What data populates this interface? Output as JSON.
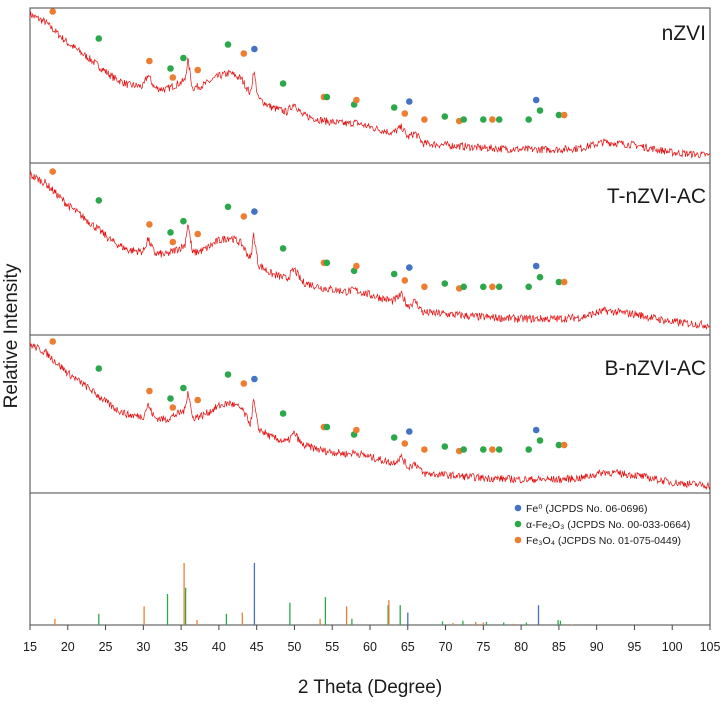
{
  "chart_data": {
    "type": "line",
    "xlabel": "2 Theta (Degree)",
    "ylabel": "Relative Intensity",
    "xlim": [
      15,
      105
    ],
    "x_ticks": [
      15,
      20,
      25,
      30,
      35,
      40,
      45,
      50,
      55,
      60,
      65,
      70,
      75,
      80,
      85,
      90,
      95,
      100,
      105
    ],
    "panels": [
      {
        "name": "nZVI"
      },
      {
        "name": "T-nZVI-AC"
      },
      {
        "name": "B-nZVI-AC"
      }
    ],
    "pattern_points": [
      [
        15,
        0.97
      ],
      [
        17,
        0.92
      ],
      [
        20,
        0.78
      ],
      [
        23,
        0.67
      ],
      [
        26,
        0.55
      ],
      [
        28,
        0.5
      ],
      [
        30,
        0.49
      ],
      [
        30.6,
        0.57
      ],
      [
        31.5,
        0.48
      ],
      [
        33,
        0.47
      ],
      [
        35.5,
        0.53
      ],
      [
        35.9,
        0.67
      ],
      [
        36.5,
        0.48
      ],
      [
        38,
        0.5
      ],
      [
        40,
        0.56
      ],
      [
        41.5,
        0.58
      ],
      [
        43,
        0.54
      ],
      [
        44.2,
        0.44
      ],
      [
        44.6,
        0.6
      ],
      [
        45.2,
        0.41
      ],
      [
        47,
        0.35
      ],
      [
        49,
        0.32
      ],
      [
        50,
        0.38
      ],
      [
        51,
        0.3
      ],
      [
        54,
        0.26
      ],
      [
        57,
        0.24
      ],
      [
        58,
        0.25
      ],
      [
        60,
        0.22
      ],
      [
        63,
        0.18
      ],
      [
        64.2,
        0.22
      ],
      [
        65,
        0.15
      ],
      [
        66,
        0.18
      ],
      [
        67,
        0.11
      ],
      [
        70,
        0.1
      ],
      [
        75,
        0.08
      ],
      [
        80,
        0.07
      ],
      [
        85,
        0.07
      ],
      [
        88,
        0.08
      ],
      [
        91,
        0.12
      ],
      [
        95,
        0.1
      ],
      [
        100,
        0.05
      ],
      [
        105,
        0.03
      ]
    ],
    "phases": [
      {
        "name": "Fe⁰ (JCPDS No. 06-0696)",
        "color": "#4472c4",
        "peaks": [
          [
            44.7,
            1.0
          ],
          [
            65.0,
            0.2
          ],
          [
            82.3,
            0.32
          ]
        ]
      },
      {
        "name": "α-Fe₂O₃ (JCPDS No. 00-033-0664)",
        "color": "#2ba84a",
        "peaks": [
          [
            24.1,
            0.18
          ],
          [
            33.2,
            0.5
          ],
          [
            35.6,
            0.6
          ],
          [
            41.0,
            0.18
          ],
          [
            49.4,
            0.36
          ],
          [
            54.1,
            0.45
          ],
          [
            57.6,
            0.1
          ],
          [
            62.4,
            0.32
          ],
          [
            64.0,
            0.32
          ],
          [
            69.6,
            0.06
          ],
          [
            72.3,
            0.07
          ],
          [
            75.4,
            0.05
          ],
          [
            77.7,
            0.04
          ],
          [
            80.7,
            0.04
          ],
          [
            84.9,
            0.08
          ],
          [
            85.2,
            0.07
          ]
        ]
      },
      {
        "name": "Fe₃O₄ (JCPDS No. 01-075-0449)",
        "color": "#ed7d31",
        "peaks": [
          [
            18.3,
            0.1
          ],
          [
            30.1,
            0.3
          ],
          [
            35.4,
            1.0
          ],
          [
            37.1,
            0.08
          ],
          [
            43.1,
            0.2
          ],
          [
            53.4,
            0.1
          ],
          [
            56.9,
            0.3
          ],
          [
            62.5,
            0.4
          ],
          [
            71.0,
            0.03
          ],
          [
            74.0,
            0.05
          ],
          [
            75.0,
            0.04
          ],
          [
            79.0,
            0.02
          ],
          [
            86.7,
            0.01
          ]
        ]
      }
    ],
    "markers": [
      {
        "x": 18.0,
        "y": 0.99,
        "phase": 2
      },
      {
        "x": 24.1,
        "y": 0.81,
        "phase": 1
      },
      {
        "x": 30.8,
        "y": 0.66,
        "phase": 2
      },
      {
        "x": 33.6,
        "y": 0.61,
        "phase": 1
      },
      {
        "x": 33.9,
        "y": 0.55,
        "phase": 2
      },
      {
        "x": 35.3,
        "y": 0.68,
        "phase": 1
      },
      {
        "x": 37.2,
        "y": 0.6,
        "phase": 2
      },
      {
        "x": 41.2,
        "y": 0.77,
        "phase": 1
      },
      {
        "x": 43.3,
        "y": 0.71,
        "phase": 2
      },
      {
        "x": 44.7,
        "y": 0.74,
        "phase": 0
      },
      {
        "x": 48.5,
        "y": 0.51,
        "phase": 1
      },
      {
        "x": 53.9,
        "y": 0.42,
        "phase": 2
      },
      {
        "x": 54.3,
        "y": 0.42,
        "phase": 1
      },
      {
        "x": 57.9,
        "y": 0.37,
        "phase": 1
      },
      {
        "x": 58.2,
        "y": 0.4,
        "phase": 2
      },
      {
        "x": 63.2,
        "y": 0.35,
        "phase": 1
      },
      {
        "x": 64.6,
        "y": 0.31,
        "phase": 2
      },
      {
        "x": 65.2,
        "y": 0.39,
        "phase": 0
      },
      {
        "x": 67.2,
        "y": 0.27,
        "phase": 2
      },
      {
        "x": 69.9,
        "y": 0.29,
        "phase": 1
      },
      {
        "x": 71.8,
        "y": 0.26,
        "phase": 2
      },
      {
        "x": 72.4,
        "y": 0.27,
        "phase": 1
      },
      {
        "x": 75.0,
        "y": 0.27,
        "phase": 1
      },
      {
        "x": 76.2,
        "y": 0.27,
        "phase": 2
      },
      {
        "x": 77.1,
        "y": 0.27,
        "phase": 1
      },
      {
        "x": 81.0,
        "y": 0.27,
        "phase": 1
      },
      {
        "x": 82.0,
        "y": 0.4,
        "phase": 0
      },
      {
        "x": 82.5,
        "y": 0.33,
        "phase": 1
      },
      {
        "x": 85.0,
        "y": 0.3,
        "phase": 1
      },
      {
        "x": 85.7,
        "y": 0.3,
        "phase": 2
      }
    ],
    "colors": {
      "pattern": "#e3100f",
      "frame": "#444444"
    }
  }
}
